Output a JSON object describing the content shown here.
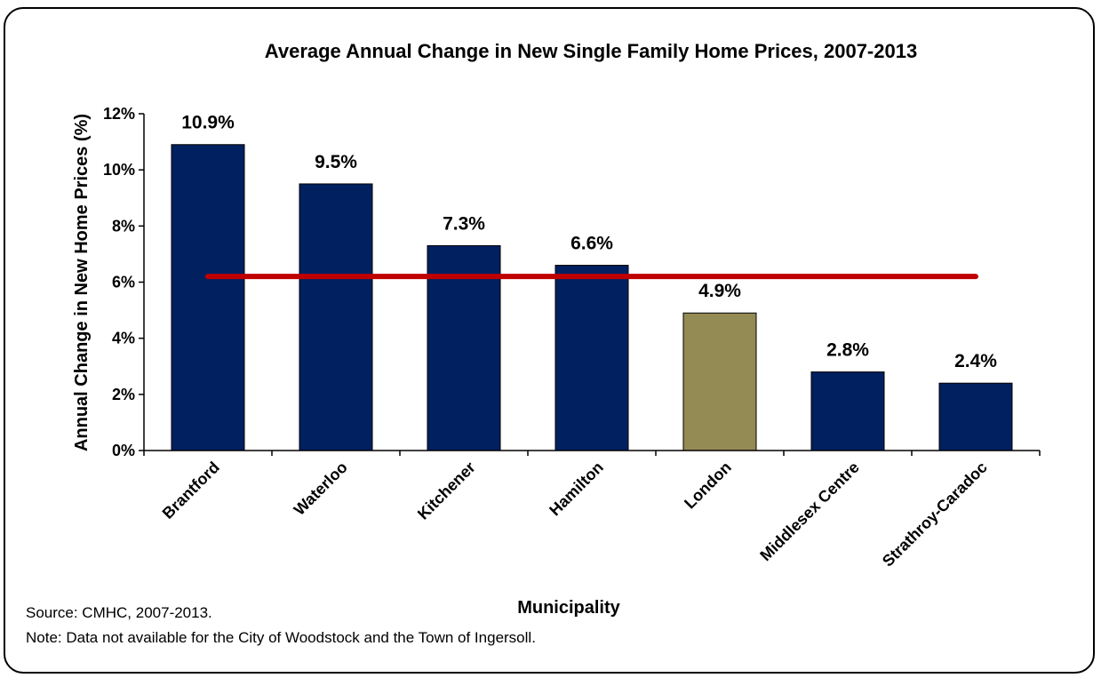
{
  "chart_data": {
    "type": "bar",
    "title": "Average Annual Change in New Single Family Home Prices, 2007-2013",
    "x_label": "Municipality",
    "y_label": "Annual Change in New Home Prices (%)",
    "categories": [
      "Brantford",
      "Waterloo",
      "Kitchener",
      "Hamilton",
      "London",
      "Middlesex Centre",
      "Strathroy-Caradoc"
    ],
    "values": [
      10.9,
      9.5,
      7.3,
      6.6,
      4.9,
      2.8,
      2.4
    ],
    "value_labels": [
      "10.9%",
      "9.5%",
      "7.3%",
      "6.6%",
      "4.9%",
      "2.8%",
      "2.4%"
    ],
    "colors": [
      "#002060",
      "#002060",
      "#002060",
      "#002060",
      "#948a54",
      "#002060",
      "#002060"
    ],
    "ylim": [
      0,
      12
    ],
    "yticks": [
      {
        "value": 0,
        "label": "0%"
      },
      {
        "value": 2,
        "label": "2%"
      },
      {
        "value": 4,
        "label": "4%"
      },
      {
        "value": 6,
        "label": "6%"
      },
      {
        "value": 8,
        "label": "8%"
      },
      {
        "value": 10,
        "label": "10%"
      },
      {
        "value": 12,
        "label": "12%"
      }
    ],
    "reference_line": {
      "value": 6.2,
      "color": "#c00000"
    },
    "source": "Source: CMHC, 2007-2013.",
    "note": "Note: Data not available for the City of Woodstock and the Town of Ingersoll."
  }
}
